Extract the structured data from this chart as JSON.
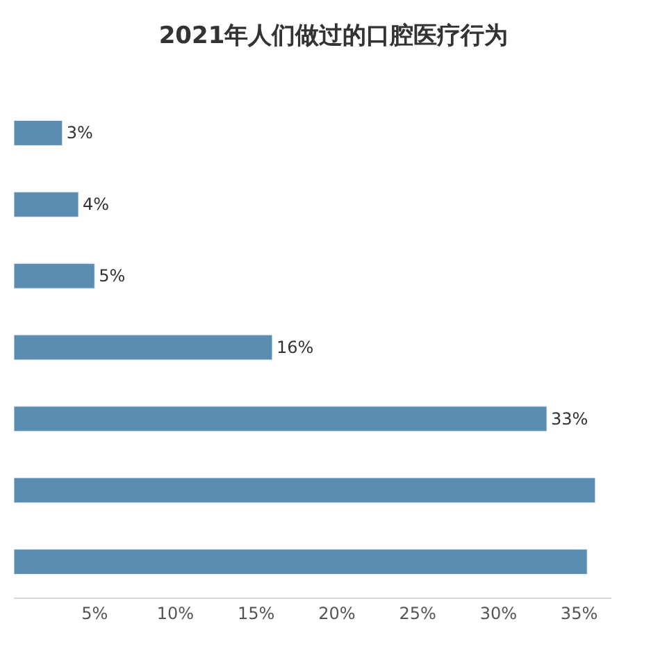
{
  "chart_data": {
    "type": "bar",
    "orientation": "horizontal",
    "title": "2021年人们做过的口腔医疗行为",
    "categories": [
      null,
      null,
      null,
      null,
      null,
      null,
      null
    ],
    "values": [
      3,
      4,
      5,
      16,
      33,
      36,
      35.5
    ],
    "value_labels": [
      "3%",
      "4%",
      "5%",
      "16%",
      "33%",
      null,
      null
    ],
    "color": "#5b8db0",
    "xlim": [
      0,
      37
    ],
    "xticks": [
      {
        "value": 5,
        "label": "5%"
      },
      {
        "value": 10,
        "label": "10%"
      },
      {
        "value": 15,
        "label": "15%"
      },
      {
        "value": 20,
        "label": "20%"
      },
      {
        "value": 25,
        "label": "25%"
      },
      {
        "value": 30,
        "label": "30%"
      },
      {
        "value": 35,
        "label": "35%"
      }
    ],
    "tick_labels": "x"
  }
}
